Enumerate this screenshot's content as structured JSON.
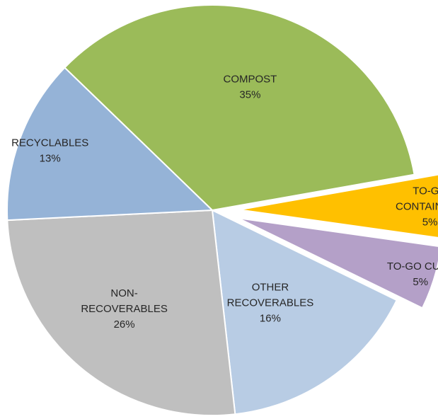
{
  "chart_data": {
    "type": "pie",
    "title": "",
    "slices": [
      {
        "label": [
          "COMPOST"
        ],
        "value": 35,
        "value_label": "35%",
        "color": "#9bbb59",
        "exploded": false
      },
      {
        "label": [
          "TO-GO",
          "CONTAINERS"
        ],
        "value": 5,
        "value_label": "5%",
        "color": "#ffc000",
        "exploded": true
      },
      {
        "label": [
          "TO-GO CUPS"
        ],
        "value": 5,
        "value_label": "5%",
        "color": "#b4a0c8",
        "exploded": true
      },
      {
        "label": [
          "OTHER",
          "RECOVERABLES"
        ],
        "value": 16,
        "value_label": "16%",
        "color": "#b8cce4",
        "exploded": false
      },
      {
        "label": [
          "NON-",
          "RECOVERABLES"
        ],
        "value": 26,
        "value_label": "26%",
        "color": "#bfbfbf",
        "exploded": false
      },
      {
        "label": [
          "RECYCLABLES"
        ],
        "value": 13,
        "value_label": "13%",
        "color": "#95b3d7",
        "exploded": false
      }
    ],
    "legend": "none",
    "data_labels": "inside"
  }
}
